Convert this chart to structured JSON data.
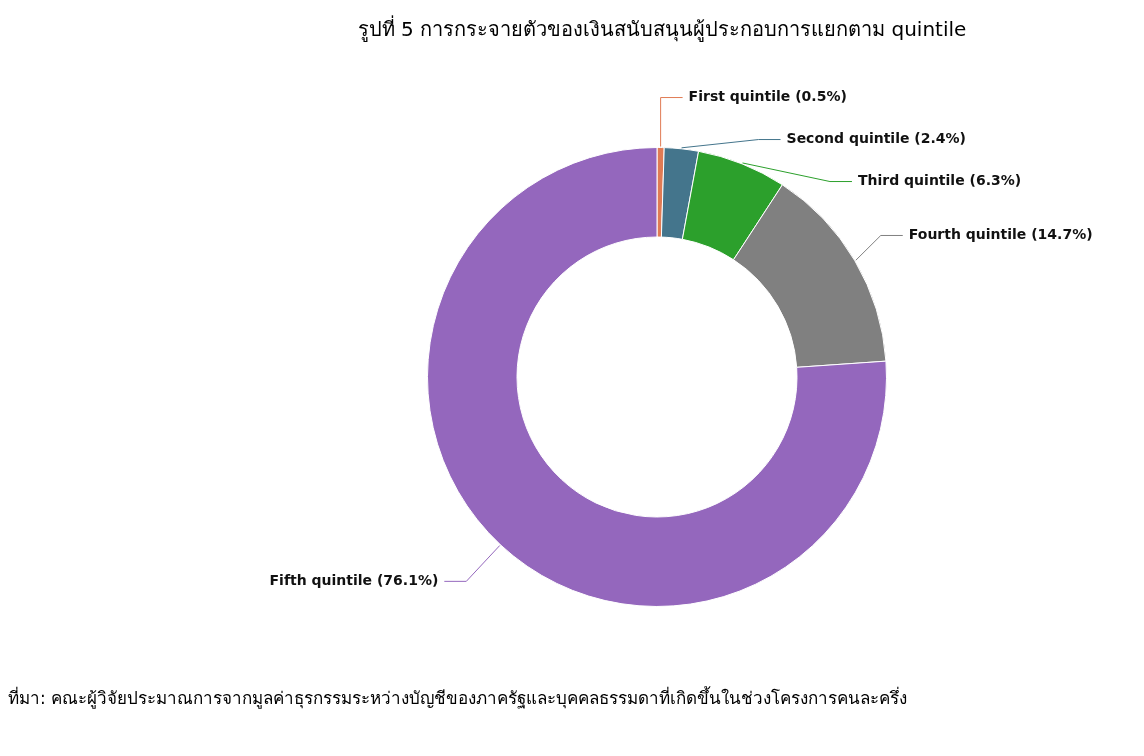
{
  "chart_data": {
    "type": "donut",
    "title": "รูปที่ 5 การกระจายตัวของเงินสนับสนุนผู้ประกอบการแยกตาม quintile",
    "categories": [
      "First quintile",
      "Second quintile",
      "Third quintile",
      "Fourth quintile",
      "Fifth quintile"
    ],
    "values": [
      0.5,
      2.4,
      6.3,
      14.7,
      76.1
    ],
    "value_labels": [
      "(0.5%)",
      "(2.4%)",
      "(6.3%)",
      "(14.7%)",
      "(76.1%)"
    ],
    "colors": [
      "#e07b54",
      "#44758c",
      "#2ca02c",
      "#808080",
      "#9467bd"
    ],
    "legend": false,
    "annotations": [
      "ที่มา: คณะผู้วิจัยประมาณการจากมูลค่าธุรกรรมระหว่างบัญชีของภาครัฐและบุคคลธรรมดาที่เกิดขึ้นในช่วงโครงการคนละครึ่ง"
    ]
  }
}
